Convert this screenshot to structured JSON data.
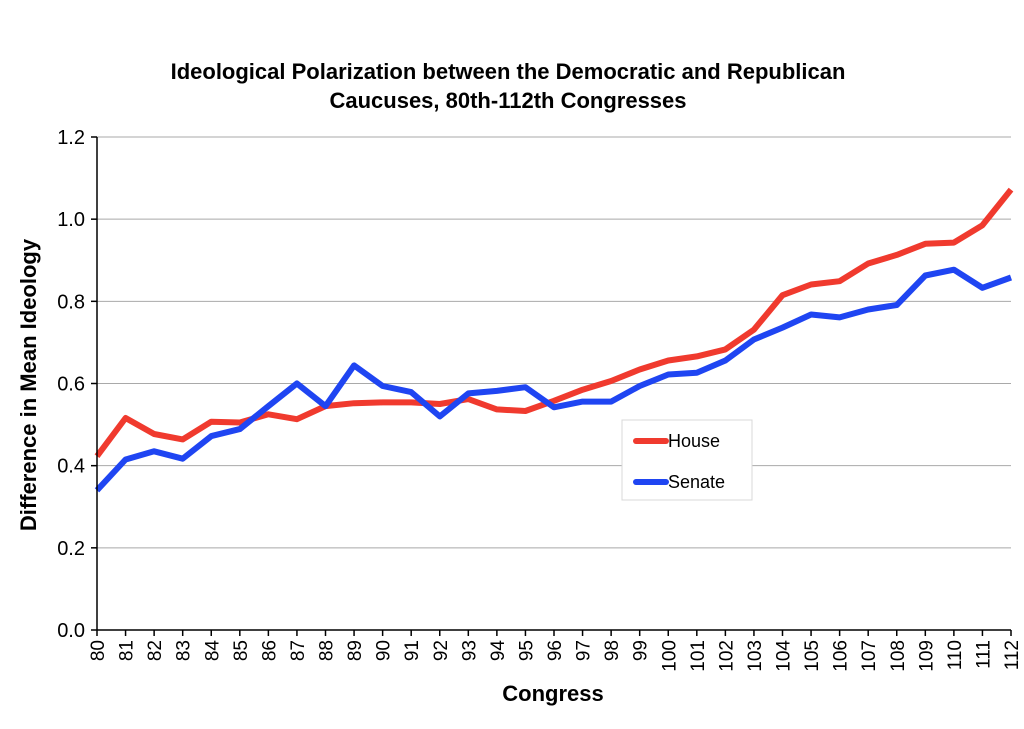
{
  "chart_data": {
    "type": "line",
    "title_lines": [
      "Ideological Polarization between the Democratic and Republican",
      "Caucuses, 80th-112th Congresses"
    ],
    "xlabel": "Congress",
    "ylabel": "Difference  in Mean Ideology",
    "x": [
      "80",
      "81",
      "82",
      "83",
      "84",
      "85",
      "86",
      "87",
      "88",
      "89",
      "90",
      "91",
      "92",
      "93",
      "94",
      "95",
      "96",
      "97",
      "98",
      "99",
      "100",
      "101",
      "102",
      "103",
      "104",
      "105",
      "106",
      "107",
      "108",
      "109",
      "110",
      "111",
      "112"
    ],
    "yticks": [
      "0.0",
      "0.2",
      "0.4",
      "0.6",
      "0.8",
      "1.0",
      "1.2"
    ],
    "ylim": [
      0,
      1.2
    ],
    "grid": true,
    "legend_position": "center-right",
    "series": [
      {
        "name": "House",
        "color": "#f03a2e",
        "values": [
          0.423,
          0.516,
          0.477,
          0.464,
          0.507,
          0.505,
          0.525,
          0.513,
          0.545,
          0.552,
          0.554,
          0.554,
          0.55,
          0.562,
          0.537,
          0.533,
          0.558,
          0.585,
          0.606,
          0.634,
          0.656,
          0.666,
          0.683,
          0.731,
          0.815,
          0.841,
          0.849,
          0.892,
          0.913,
          0.94,
          0.943,
          0.985,
          1.072
        ]
      },
      {
        "name": "Senate",
        "color": "#1f45f2",
        "values": [
          0.34,
          0.415,
          0.435,
          0.417,
          0.472,
          0.489,
          0.545,
          0.6,
          0.545,
          0.644,
          0.594,
          0.579,
          0.52,
          0.576,
          0.582,
          0.591,
          0.542,
          0.556,
          0.556,
          0.594,
          0.622,
          0.626,
          0.656,
          0.707,
          0.736,
          0.768,
          0.761,
          0.78,
          0.791,
          0.863,
          0.877,
          0.833,
          0.858
        ]
      }
    ]
  }
}
